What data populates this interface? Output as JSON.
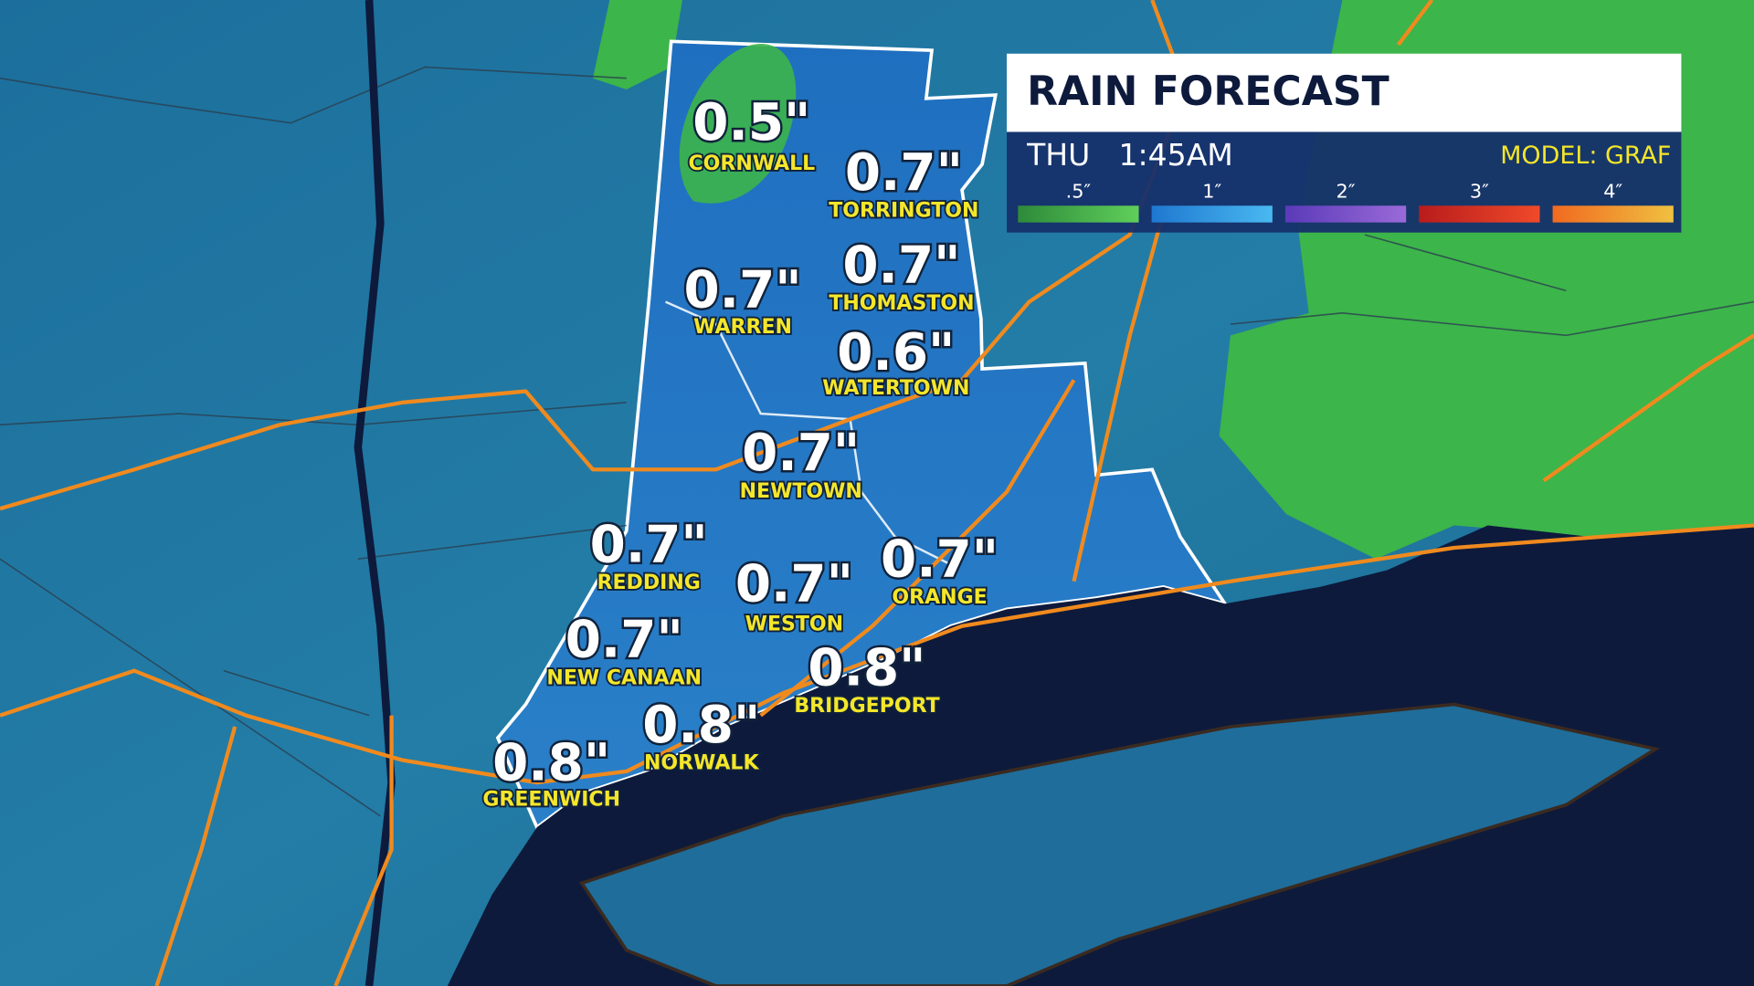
{
  "header": {
    "title": "RAIN FORECAST",
    "day": "THU",
    "time": "1:45AM",
    "model": "MODEL: GRAF"
  },
  "legend": [
    ".5″",
    "1″",
    "2″",
    "3″",
    "4″"
  ],
  "towns": [
    {
      "value": "0.5\"",
      "name": "CORNWALL"
    },
    {
      "value": "0.7\"",
      "name": "TORRINGTON"
    },
    {
      "value": "0.7\"",
      "name": "WARREN"
    },
    {
      "value": "0.7\"",
      "name": "THOMASTON"
    },
    {
      "value": "0.6\"",
      "name": "WATERTOWN"
    },
    {
      "value": "0.7\"",
      "name": "NEWTOWN"
    },
    {
      "value": "0.7\"",
      "name": "REDDING"
    },
    {
      "value": "0.7\"",
      "name": "WESTON"
    },
    {
      "value": "0.7\"",
      "name": "ORANGE"
    },
    {
      "value": "0.7\"",
      "name": "NEW CANAAN"
    },
    {
      "value": "0.8\"",
      "name": "BRIDGEPORT"
    },
    {
      "value": "0.8\"",
      "name": "NORWALK"
    },
    {
      "value": "0.8\"",
      "name": "GREENWICH"
    }
  ]
}
